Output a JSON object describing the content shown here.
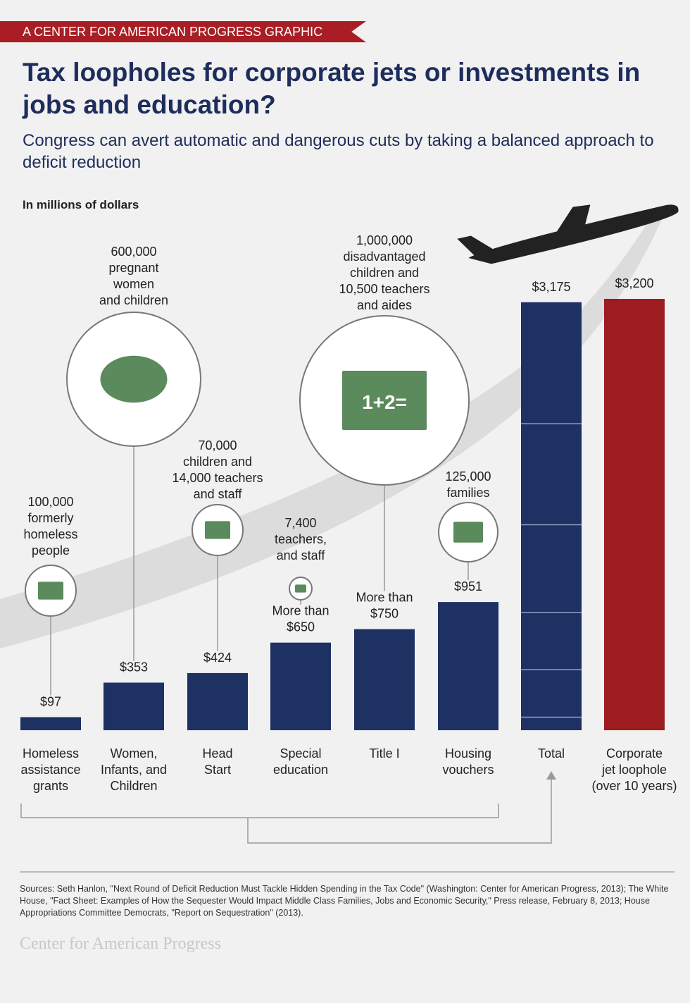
{
  "banner": "A CENTER FOR AMERICAN PROGRESS GRAPHIC",
  "title": "Tax loopholes for corporate jets or investments in jobs and education?",
  "subtitle": "Congress can avert automatic and dangerous cuts by taking a balanced approach to deficit reduction",
  "sources": "Sources: Seth Hanlon, \"Next Round of Deficit Reduction Must Tackle Hidden Spending in the Tax Code\" (Washington: Center for American Progress, 2013); The White House, \"Fact Sheet: Examples of How the Sequester Would Impact Middle Class Families, Jobs and Economic Security,\" Press release, February 8, 2013; House Appropriations Committee Democrats, \"Report on Sequestration\" (2013).",
  "logo": "Center for American Progress",
  "colors": {
    "navy": "#1e3163",
    "red": "#9c1c1f",
    "green": "#5b8a5c"
  },
  "chart_data": {
    "type": "bar",
    "ylabel": "In millions of dollars",
    "ylim": [
      0,
      3200
    ],
    "categories": [
      [
        "Homeless",
        "assistance",
        "grants"
      ],
      [
        "Women,",
        "Infants, and",
        "Children"
      ],
      [
        "Head",
        "Start"
      ],
      [
        "Special",
        "education"
      ],
      [
        "Title I"
      ],
      [
        "Housing",
        "vouchers"
      ],
      [
        "Total"
      ],
      [
        "Corporate",
        "jet loophole",
        "(over 10 years)"
      ]
    ],
    "values": [
      97,
      353,
      424,
      650,
      750,
      951,
      3175,
      3200
    ],
    "value_labels": [
      [
        "$97"
      ],
      [
        "$353"
      ],
      [
        "$424"
      ],
      [
        "More than",
        "$650"
      ],
      [
        "More than",
        "$750"
      ],
      [
        "$951"
      ],
      [
        "$3,175"
      ],
      [
        "$3,200"
      ]
    ],
    "annotations": [
      [
        "100,000",
        "formerly",
        "homeless",
        "people"
      ],
      [
        "600,000",
        "pregnant",
        "women",
        "and children"
      ],
      [
        "70,000",
        "children and",
        "14,000 teachers",
        "and staff"
      ],
      [
        "7,400",
        "teachers,",
        "and staff"
      ],
      [
        "1,000,000",
        "disadvantaged",
        "children and",
        "10,500 teachers",
        "and aides"
      ],
      [
        "125,000",
        "families"
      ]
    ],
    "icons": [
      "house-icon",
      "plate-fork-knife-icon",
      "book-icon",
      "pencil-icon",
      "chalkboard-icon",
      "laptop-icon"
    ],
    "chalkboard_text": "1+2="
  }
}
